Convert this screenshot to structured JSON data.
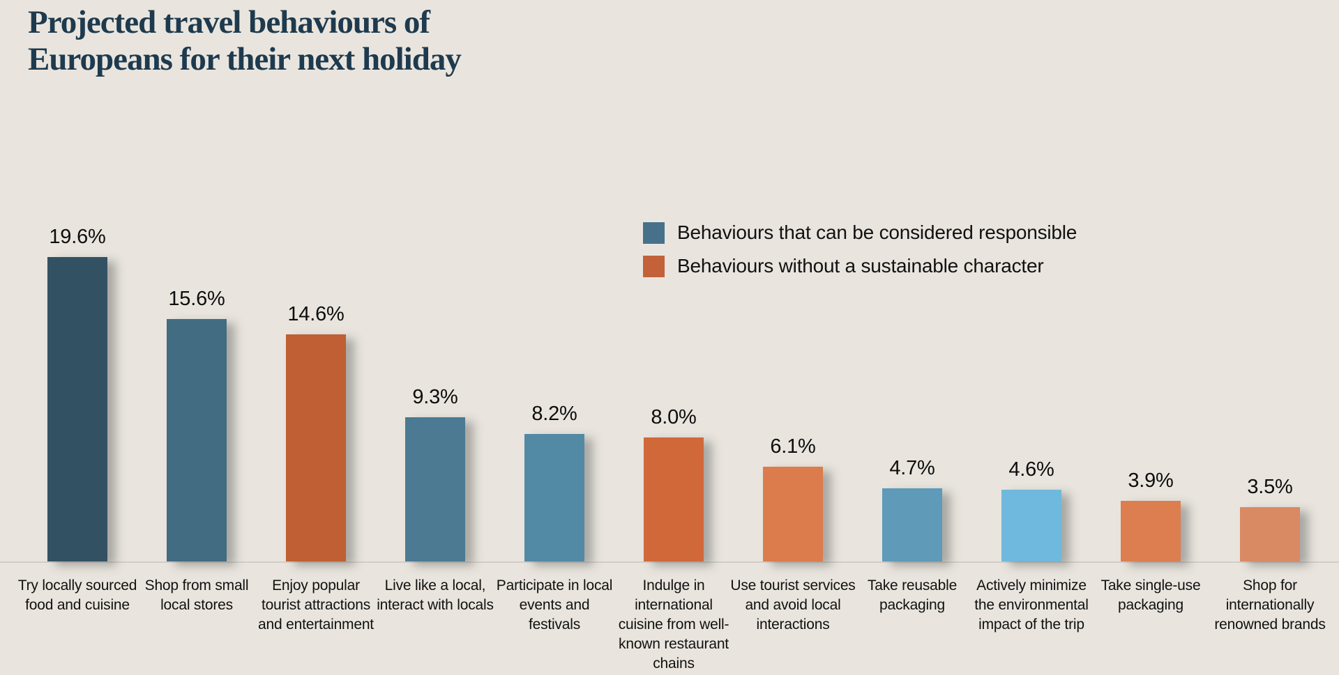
{
  "page": {
    "background_color": "#e9e5de"
  },
  "title": {
    "lines": [
      "Projected travel behaviours of",
      "Europeans for their next holiday"
    ],
    "color": "#1e3a4e"
  },
  "chart_data": {
    "type": "bar",
    "title": "Projected travel behaviours of Europeans for their next holiday",
    "xlabel": "",
    "ylabel": "",
    "unit": "%",
    "ylim": [
      0,
      22
    ],
    "grid": false,
    "legend_position": "top-right",
    "data_labels": true,
    "categories": [
      "Try locally sourced food and cuisine",
      "Shop from small local stores",
      "Enjoy popular tourist attractions and entertainment",
      "Live like a local, interact with locals",
      "Participate in local events and festivals",
      "Indulge in international cuisine from well-known restaurant chains",
      "Use tourist services and avoid local interactions",
      "Take reusable packaging",
      "Actively minimize the environmental impact of the trip",
      "Take single-use packaging",
      "Shop for internationally renowned brands"
    ],
    "values": [
      19.6,
      15.6,
      14.6,
      9.3,
      8.2,
      8.0,
      6.1,
      4.7,
      4.6,
      3.9,
      3.5
    ],
    "value_labels": [
      "19.6%",
      "15.6%",
      "14.6%",
      "9.3%",
      "8.2%",
      "8.0%",
      "6.1%",
      "4.7%",
      "4.6%",
      "3.9%",
      "3.5%"
    ],
    "bar_colors": [
      "#325263",
      "#426c81",
      "#bf5f33",
      "#4b7a92",
      "#5289a5",
      "#d1683a",
      "#dc7c4c",
      "#5f9ab8",
      "#6eb9dd",
      "#dc7e4f",
      "#d98a63"
    ],
    "bar_groups": [
      "responsible",
      "responsible",
      "unsustainable",
      "responsible",
      "responsible",
      "unsustainable",
      "unsustainable",
      "responsible",
      "responsible",
      "unsustainable",
      "unsustainable"
    ],
    "legend": [
      {
        "label": "Behaviours that can be considered responsible",
        "color": "#47708a",
        "group": "responsible"
      },
      {
        "label": "Behaviours without a sustainable character",
        "color": "#c2613a",
        "group": "unsustainable"
      }
    ]
  }
}
